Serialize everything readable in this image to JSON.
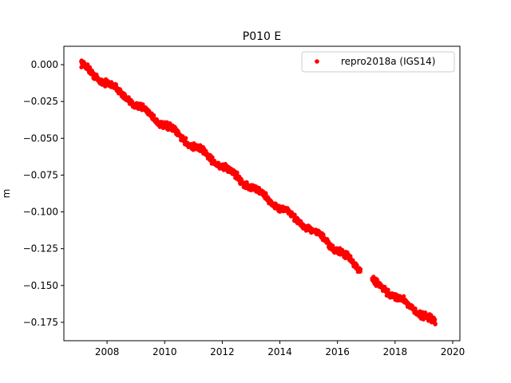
{
  "chart_data": {
    "type": "scatter",
    "title": "P010 E",
    "xlabel": "",
    "ylabel": "m",
    "xlim": [
      2006.5,
      2020.25
    ],
    "ylim": [
      -0.1875,
      0.0125
    ],
    "x_ticks": [
      2008,
      2010,
      2012,
      2014,
      2016,
      2018,
      2020
    ],
    "y_ticks": [
      0.0,
      -0.025,
      -0.05,
      -0.075,
      -0.1,
      -0.125,
      -0.15,
      -0.175
    ],
    "y_tick_labels": [
      "0.000",
      "−0.025",
      "−0.050",
      "−0.075",
      "−0.100",
      "−0.125",
      "−0.150",
      "−0.175"
    ],
    "grid": false,
    "legend_position": "top-right",
    "series": [
      {
        "name": "repro2018a (IGS14)",
        "color": "#ff0000",
        "marker": "circle",
        "segments": [
          {
            "x": [
              2007.1,
              2007.5,
              2008.0,
              2008.5,
              2009.0,
              2009.5,
              2010.0,
              2010.5,
              2011.0,
              2011.5,
              2012.0,
              2012.5,
              2013.0,
              2013.5,
              2014.0,
              2014.5,
              2015.0,
              2015.5,
              2016.0,
              2016.5,
              2016.8
            ],
            "y": [
              0.001,
              -0.007,
              -0.012,
              -0.02,
              -0.027,
              -0.034,
              -0.041,
              -0.048,
              -0.055,
              -0.062,
              -0.069,
              -0.076,
              -0.083,
              -0.09,
              -0.097,
              -0.104,
              -0.111,
              -0.118,
              -0.126,
              -0.134,
              -0.139
            ]
          },
          {
            "x": [
              2017.2,
              2017.5,
              2018.0,
              2018.5,
              2019.0,
              2019.4
            ],
            "y": [
              -0.147,
              -0.151,
              -0.157,
              -0.164,
              -0.17,
              -0.176
            ]
          }
        ]
      }
    ]
  }
}
